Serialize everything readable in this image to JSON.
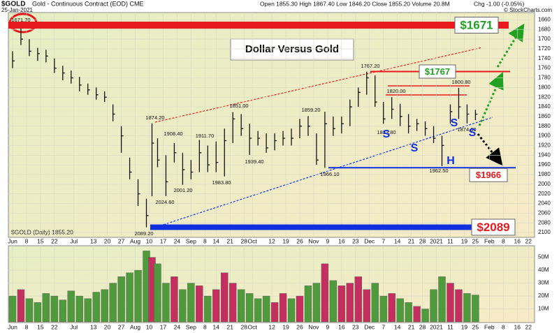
{
  "chart_data": {
    "type": "ohlc",
    "symbol": "$GOLD",
    "description": "Gold - Continuous Contract (EOD) CME",
    "date": "25-Jan-2021",
    "quote": "Open 1855.30  High 1867.40  Low 1846.20  Close 1855.20  Volume 20.8M",
    "change": "Chg -1.00 (-0.05%)",
    "credit": "© StockCharts.com",
    "title": "Dollar Versus Gold",
    "legend": "$GOLD (Daily) 1855.20",
    "inverted": true,
    "x": [
      0,
      3,
      6,
      9,
      12,
      15,
      18,
      21,
      24,
      27,
      30,
      33,
      36,
      39,
      42,
      45,
      48,
      50,
      52,
      55,
      58,
      61,
      64,
      67,
      70,
      73,
      76,
      79,
      82,
      85,
      88,
      91,
      94,
      97,
      100,
      103,
      106,
      109,
      112,
      115,
      118,
      121,
      124,
      127,
      130,
      133,
      136,
      139,
      142,
      145,
      148,
      151,
      154,
      157,
      160,
      163,
      166
    ],
    "close": [
      1745,
      1700,
      1725,
      1730,
      1735,
      1760,
      1770,
      1780,
      1795,
      1805,
      1815,
      1820,
      1855,
      1900,
      1975,
      2020,
      2065,
      1915,
      1950,
      1995,
      1935,
      1970,
      1975,
      1935,
      1960,
      1955,
      1910,
      1865,
      1885,
      1905,
      1905,
      1925,
      1910,
      1905,
      1905,
      1880,
      1880,
      1950,
      1875,
      1885,
      1875,
      1840,
      1810,
      1780,
      1830,
      1865,
      1845,
      1860,
      1880,
      1875,
      1885,
      1905,
      1920,
      1850,
      1840,
      1855,
      1855.2
    ],
    "low": [
      1725,
      1671.7,
      1700,
      1718,
      1722,
      1740,
      1755,
      1765,
      1778,
      1792,
      1800,
      1808,
      1835,
      1880,
      1945,
      1990,
      2030,
      1874.2,
      1905,
      1940,
      1915,
      1935,
      1950,
      1908.4,
      1920,
      1911.7,
      1885,
      1851,
      1855,
      1875,
      1890,
      1895,
      1895,
      1890,
      1885,
      1865,
      1859.2,
      1895,
      1850,
      1860,
      1860,
      1825,
      1800,
      1767.2,
      1775,
      1830,
      1820,
      1833.8,
      1855,
      1865,
      1870,
      1880,
      1900,
      1835,
      1800.8,
      1835,
      1846.2
    ],
    "high": [
      1760,
      1712,
      1735,
      1745,
      1748,
      1770,
      1785,
      1792,
      1808,
      1815,
      1825,
      1830,
      1870,
      1935,
      1990,
      2045,
      2089.2,
      2025,
      1965,
      2024.6,
      1955,
      2001.2,
      1990,
      1975,
      1975,
      1975,
      1983.8,
      1915,
      1900,
      1939.4,
      1920,
      1935,
      1930,
      1920,
      1920,
      1905,
      1900,
      1960,
      1966.1,
      1900,
      1895,
      1880,
      1840,
      1815,
      1840,
      1875,
      1865,
      1880,
      1895,
      1890,
      1900,
      1915,
      1962.5,
      1875,
      1865,
      1874.6,
      1867.4
    ],
    "volume": [
      20000000,
      25000000,
      18000000,
      15000000,
      22000000,
      20000000,
      17000000,
      24000000,
      20000000,
      18000000,
      23000000,
      25000000,
      30000000,
      35000000,
      38000000,
      40000000,
      55000000,
      50000000,
      45000000,
      30000000,
      35000000,
      25000000,
      30000000,
      28000000,
      20000000,
      25000000,
      38000000,
      30000000,
      25000000,
      22000000,
      18000000,
      20000000,
      15000000,
      22000000,
      18000000,
      20000000,
      28000000,
      30000000,
      45000000,
      32000000,
      28000000,
      30000000,
      35000000,
      25000000,
      30000000,
      20000000,
      22000000,
      18000000,
      15000000,
      12000000,
      10000000,
      25000000,
      35000000,
      30000000,
      25000000,
      22000000,
      20800000
    ],
    "bar_color": "#111111",
    "up_color": "#4f9a3c",
    "down_color": "#c33060",
    "xlim": [
      -1.5,
      187.2
    ],
    "xticks": [
      {
        "value": 0,
        "label": "Jun"
      },
      {
        "value": 5,
        "label": "8"
      },
      {
        "value": 10,
        "label": "15"
      },
      {
        "value": 15,
        "label": "22"
      },
      {
        "value": 22,
        "label": "Jul"
      },
      {
        "value": 29,
        "label": "13"
      },
      {
        "value": 34,
        "label": "20"
      },
      {
        "value": 39,
        "label": "27"
      },
      {
        "value": 44,
        "label": "Aug"
      },
      {
        "value": 49,
        "label": "10"
      },
      {
        "value": 54,
        "label": "17"
      },
      {
        "value": 59,
        "label": "24"
      },
      {
        "value": 64,
        "label": "Sep"
      },
      {
        "value": 69,
        "label": "8"
      },
      {
        "value": 73,
        "label": "14"
      },
      {
        "value": 78,
        "label": "21"
      },
      {
        "value": 83,
        "label": "28"
      },
      {
        "value": 86,
        "label": "Oct"
      },
      {
        "value": 93,
        "label": "12"
      },
      {
        "value": 98,
        "label": "19"
      },
      {
        "value": 103,
        "label": "26"
      },
      {
        "value": 108,
        "label": "Nov"
      },
      {
        "value": 113,
        "label": "9"
      },
      {
        "value": 118,
        "label": "16"
      },
      {
        "value": 123,
        "label": "23"
      },
      {
        "value": 128,
        "label": "Dec"
      },
      {
        "value": 133,
        "label": "7"
      },
      {
        "value": 138,
        "label": "14"
      },
      {
        "value": 143,
        "label": "21"
      },
      {
        "value": 147,
        "label": "28"
      },
      {
        "value": 152,
        "label": "2021"
      },
      {
        "value": 157,
        "label": "11"
      },
      {
        "value": 162,
        "label": "19"
      },
      {
        "value": 166,
        "label": "25"
      },
      {
        "value": 171,
        "label": "Feb"
      },
      {
        "value": 176,
        "label": "8"
      },
      {
        "value": 181,
        "label": "16"
      },
      {
        "value": 185,
        "label": "22"
      }
    ],
    "ylim": [
      1645,
      2110
    ],
    "yticks": [
      1660,
      1680,
      1700,
      1720,
      1740,
      1760,
      1780,
      1800,
      1820,
      1840,
      1860,
      1880,
      1900,
      1920,
      1940,
      1960,
      1980,
      2000,
      2020,
      2040,
      2060,
      2080,
      2100
    ],
    "volume_ylim": [
      0,
      59000000
    ],
    "volume_yticks": [
      {
        "value": 10000000,
        "label": "10M"
      },
      {
        "value": 20000000,
        "label": "20M"
      },
      {
        "value": 30000000,
        "label": "30M"
      },
      {
        "value": 40000000,
        "label": "40M"
      },
      {
        "value": 50000000,
        "label": "50M"
      }
    ],
    "levels": [
      {
        "value": 1671,
        "label": "$1671",
        "color": "#e8191c",
        "text_color": "#22a022"
      },
      {
        "value": 1767,
        "label": "$1767",
        "color": "#e8191c",
        "text_color": "#22a022"
      },
      {
        "value": 1966,
        "label": "$1966",
        "color": "#1030e0",
        "text_color": "#e8191c"
      },
      {
        "value": 2089,
        "label": "$2089",
        "color": "#1030e0",
        "text_color": "#e8191c"
      }
    ],
    "annotations": [
      "1671.70",
      "1874.20",
      "1908.40",
      "1911.70",
      "2001.20",
      "2024.60",
      "1983.80",
      "2089.20",
      "1851.00",
      "1939.40",
      "1859.20",
      "1966.10",
      "1767.20",
      "1820.00",
      "1800.80",
      "1833.80",
      "1874.60",
      "1962.50",
      "S",
      "S",
      "H",
      "S",
      "S"
    ]
  }
}
